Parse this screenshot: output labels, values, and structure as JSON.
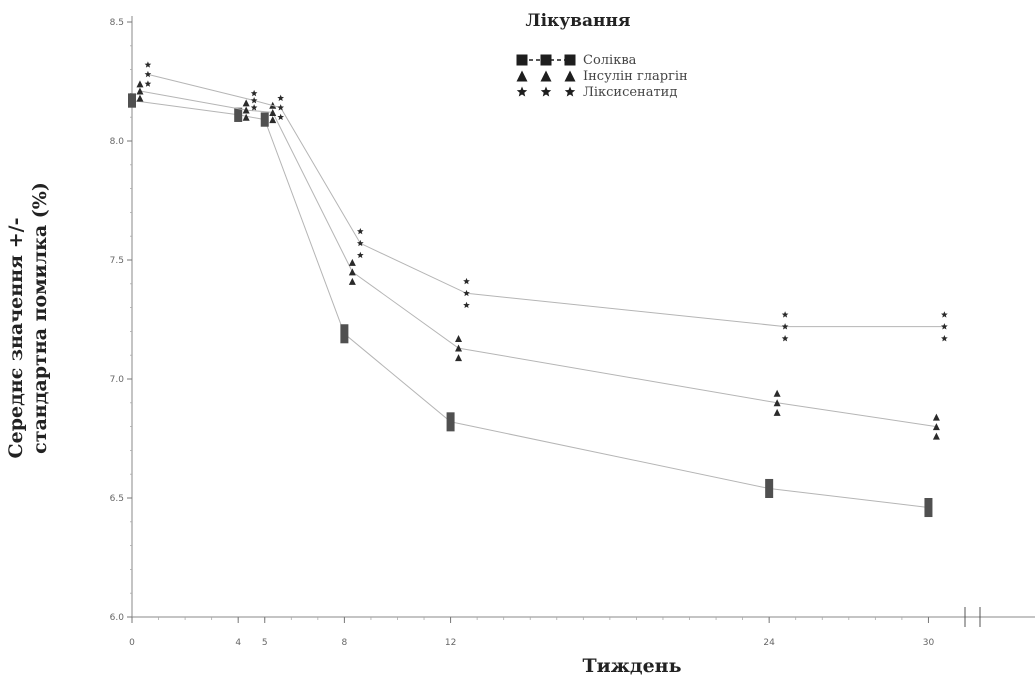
{
  "chart_data": {
    "type": "line",
    "title": "",
    "legend": {
      "title": "Лікування",
      "placement": "top-center",
      "entries": [
        {
          "marker": "square",
          "label": "Соліква"
        },
        {
          "marker": "triangle",
          "label": "Інсулін гларгін"
        },
        {
          "marker": "star",
          "label": "Ліксисенатид"
        }
      ]
    },
    "xlabel": "Тиждень",
    "ylabel_line1": "Середнє значення +/-",
    "ylabel_line2": "стандартна помилка (%)",
    "ylim": [
      6.0,
      8.5
    ],
    "xlim": [
      0,
      31
    ],
    "yticks": [
      {
        "v": 6.0,
        "label": "6.0"
      },
      {
        "v": 6.5,
        "label": "6.5"
      },
      {
        "v": 7.0,
        "label": "7.0"
      },
      {
        "v": 7.5,
        "label": "7.5"
      },
      {
        "v": 8.0,
        "label": "8.0"
      },
      {
        "v": 8.5,
        "label": "8.5"
      }
    ],
    "xticks": [
      {
        "v": 0,
        "label": "0"
      },
      {
        "v": 4,
        "label": "4"
      },
      {
        "v": 5,
        "label": "5"
      },
      {
        "v": 8,
        "label": "8"
      },
      {
        "v": 12,
        "label": "12"
      },
      {
        "v": 24,
        "label": "24"
      },
      {
        "v": 30,
        "label": "30"
      }
    ],
    "grid": false,
    "axis_break": true,
    "series": [
      {
        "name": "Соліква",
        "marker": "square",
        "color": "#505050",
        "points": [
          {
            "x": 0,
            "y": 8.17,
            "err": 0.03
          },
          {
            "x": 4,
            "y": 8.11,
            "err": 0.03
          },
          {
            "x": 5,
            "y": 8.09,
            "err": 0.03
          },
          {
            "x": 8,
            "y": 7.19,
            "err": 0.04
          },
          {
            "x": 12,
            "y": 6.82,
            "err": 0.04
          },
          {
            "x": 24,
            "y": 6.54,
            "err": 0.04
          },
          {
            "x": 30,
            "y": 6.46,
            "err": 0.04
          }
        ]
      },
      {
        "name": "Інсулін гларгін",
        "marker": "triangle",
        "color": "#2a2a2a",
        "points": [
          {
            "x": 0.3,
            "y": 8.21,
            "err": 0.03
          },
          {
            "x": 4.3,
            "y": 8.13,
            "err": 0.03
          },
          {
            "x": 5.3,
            "y": 8.12,
            "err": 0.03
          },
          {
            "x": 8.3,
            "y": 7.45,
            "err": 0.04
          },
          {
            "x": 12.3,
            "y": 7.13,
            "err": 0.04
          },
          {
            "x": 24.3,
            "y": 6.9,
            "err": 0.04
          },
          {
            "x": 30.3,
            "y": 6.8,
            "err": 0.04
          }
        ]
      },
      {
        "name": "Ліксисенатид",
        "marker": "star",
        "color": "#2a2a2a",
        "points": [
          {
            "x": 0.6,
            "y": 8.28,
            "err": 0.04
          },
          {
            "x": 4.6,
            "y": 8.17,
            "err": 0.03
          },
          {
            "x": 5.6,
            "y": 8.14,
            "err": 0.04
          },
          {
            "x": 8.6,
            "y": 7.57,
            "err": 0.05
          },
          {
            "x": 12.6,
            "y": 7.36,
            "err": 0.05
          },
          {
            "x": 24.6,
            "y": 7.22,
            "err": 0.05
          },
          {
            "x": 30.6,
            "y": 7.22,
            "err": 0.05
          }
        ]
      }
    ]
  }
}
